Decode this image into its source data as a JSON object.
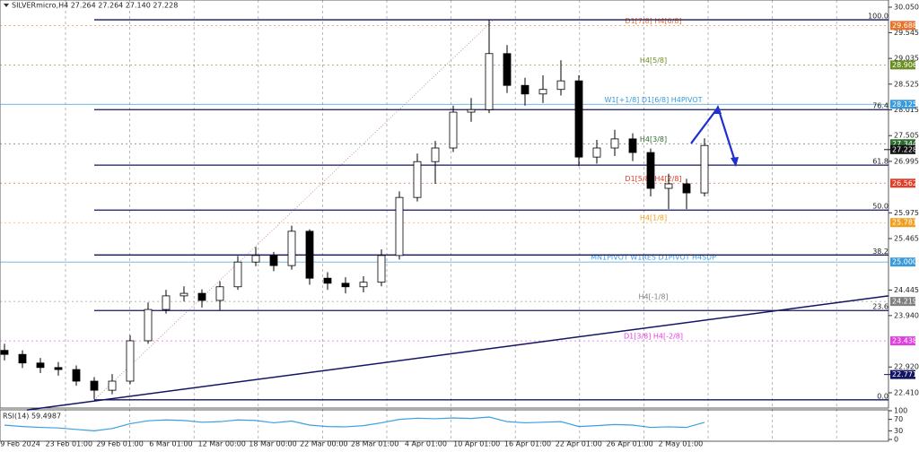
{
  "chart_data": [
    {
      "type": "candlestick",
      "title": "SILVERmicro,H4  27.264 27.264 27.140 27.228",
      "open": [
        23.25,
        23.17,
        23.0,
        22.91,
        22.87,
        22.64,
        22.46,
        22.64,
        23.44,
        24.06,
        24.33,
        24.38,
        24.24,
        24.51,
        25.0,
        25.13,
        24.93,
        25.61,
        24.68,
        24.58,
        24.51,
        24.6,
        25.13,
        26.28,
        26.99,
        27.26,
        27.97,
        28.02,
        29.13,
        28.5,
        28.33,
        28.42,
        28.59,
        27.08,
        27.26,
        27.44,
        27.17,
        26.46,
        26.55,
        26.37
      ],
      "high": [
        23.38,
        23.25,
        23.1,
        23.02,
        22.95,
        22.72,
        22.78,
        23.55,
        24.2,
        24.45,
        24.52,
        24.46,
        24.62,
        25.12,
        25.3,
        25.2,
        25.72,
        25.65,
        24.8,
        24.7,
        24.72,
        25.25,
        26.4,
        27.15,
        27.4,
        28.1,
        28.25,
        29.8,
        29.3,
        28.65,
        28.7,
        29.0,
        28.7,
        27.42,
        27.62,
        27.55,
        27.25,
        26.75,
        26.65,
        27.45
      ],
      "low": [
        23.05,
        22.9,
        22.8,
        22.75,
        22.55,
        22.28,
        22.38,
        22.58,
        23.38,
        23.98,
        24.22,
        24.1,
        24.05,
        24.45,
        24.92,
        24.82,
        24.85,
        24.55,
        24.45,
        24.38,
        24.4,
        24.52,
        25.05,
        26.2,
        26.55,
        27.18,
        27.78,
        27.95,
        28.35,
        28.1,
        28.15,
        28.3,
        26.9,
        26.95,
        27.1,
        27.0,
        26.3,
        26.05,
        26.05,
        26.3
      ],
      "close": [
        23.17,
        23.0,
        22.91,
        22.87,
        22.64,
        22.46,
        22.64,
        23.44,
        24.06,
        24.33,
        24.38,
        24.24,
        24.51,
        25.0,
        25.13,
        24.93,
        25.61,
        24.68,
        24.58,
        24.51,
        24.6,
        25.13,
        26.28,
        26.99,
        27.26,
        27.97,
        28.02,
        29.13,
        28.5,
        28.33,
        28.42,
        28.59,
        27.08,
        27.26,
        27.44,
        27.17,
        26.46,
        26.55,
        26.37,
        27.31
      ],
      "ylim": [
        22.107,
        30.192
      ],
      "yticks": [
        {
          "value": 30.05,
          "label": "30.050"
        },
        29.545,
        29.035,
        28.525,
        28.015,
        27.505,
        26.995,
        25.975,
        25.465,
        24.445,
        {
          "value": 23.94,
          "label": "23.940"
        },
        {
          "value": 22.92,
          "label": "22.920"
        },
        {
          "value": 22.41,
          "label": "22.410"
        }
      ],
      "xtick_labels": [
        "19 Feb 2024",
        "23 Feb 01:00",
        "29 Feb 01:00",
        "6 Mar 01:00",
        "12 Mar 00:00",
        "18 Mar 00:00",
        "22 Mar 00:00",
        "28 Mar 01:00",
        "4 Apr 01:00",
        "10 Apr 01:00",
        "16 Apr 01:00",
        "22 Apr 01:00",
        "26 Apr 01:00",
        "2 May 01:00"
      ],
      "levels": [
        {
          "value": 29.688,
          "label": "29.688",
          "text": "D1[7/8] H4[6/8]",
          "color": "#e8742c"
        },
        {
          "value": 28.906,
          "label": "28.906",
          "text": "H4[5/8]",
          "color": "#6b8e23"
        },
        {
          "value": 28.125,
          "label": "28.125",
          "text": "W1[+1/8] D1[6/8] H4PIVOT",
          "color": "#3a9ad9"
        },
        {
          "value": 27.344,
          "label": "27.344",
          "text": "H4[3/8]",
          "color": "#2e6b2e"
        },
        {
          "value": 26.562,
          "label": "26.562",
          "text": "D1[5/8] H4[2/8]",
          "color": "#e0402a"
        },
        {
          "value": 25.781,
          "label": "25.781",
          "text": "H4[1/8]",
          "color": "#f0a020"
        },
        {
          "value": 25.0,
          "label": "25.000",
          "text": "MN1PIVOT W1RES D1PIVOT H4SUP",
          "color": "#3a9ad9"
        },
        {
          "value": 24.219,
          "label": "24.219",
          "text": "H4[-1/8]",
          "color": "#808080"
        },
        {
          "value": 23.438,
          "label": "23.438",
          "text": "D1[3/8] H4[-2/8]",
          "color": "#e040e0"
        }
      ],
      "price_markers": [
        {
          "value": 27.228,
          "label": "27.228",
          "color": "#111111"
        },
        {
          "value": 22.771,
          "label": "22.771",
          "color": "#141464"
        }
      ],
      "fib_levels": [
        {
          "value": 29.8,
          "label": "100.0"
        },
        {
          "value": 28.02,
          "label": "76.4"
        },
        {
          "value": 26.92,
          "label": "61.8"
        },
        {
          "value": 26.03,
          "label": "50.0"
        },
        {
          "value": 25.14,
          "label": "38.2"
        },
        {
          "value": 24.04,
          "label": "23.6"
        },
        {
          "value": 22.27,
          "label": "0.0"
        }
      ],
      "fib_color": "#141464",
      "trendline": [
        22.07,
        24.33
      ],
      "projection": [
        27.35,
        28.06,
        26.94
      ],
      "projection_color": "#1f2fd0"
    },
    {
      "type": "line",
      "title": "RSI(14) 59.4987",
      "color": "#3aa0e0",
      "values": [
        50,
        45,
        42,
        40,
        35,
        30,
        38,
        55,
        65,
        68,
        66,
        60,
        62,
        68,
        66,
        58,
        64,
        50,
        45,
        44,
        48,
        58,
        70,
        74,
        72,
        75,
        73,
        78,
        62,
        58,
        60,
        62,
        45,
        48,
        52,
        50,
        42,
        44,
        42,
        59.4987
      ],
      "ylim": [
        0,
        100
      ],
      "yticks": [
        100,
        70,
        30,
        0
      ]
    }
  ]
}
